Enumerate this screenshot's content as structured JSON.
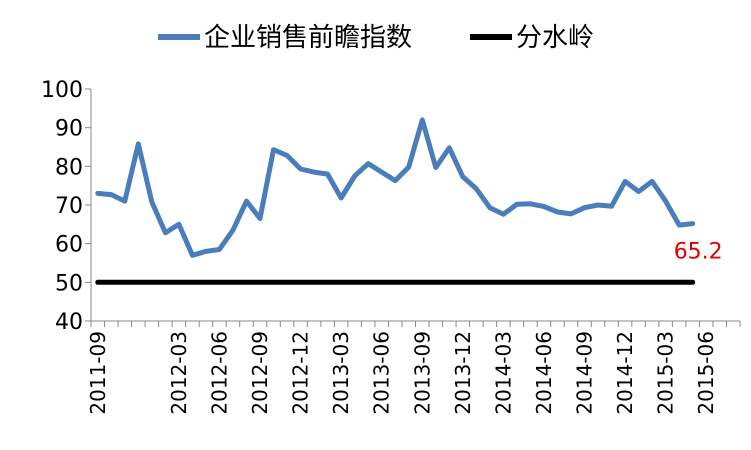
{
  "chart_data": {
    "type": "line",
    "title": "",
    "xlabel": "",
    "ylabel": "",
    "ylim": [
      40,
      100
    ],
    "yticks": [
      40,
      50,
      60,
      70,
      80,
      90,
      100
    ],
    "xtick_labels": [
      "2011-09",
      "2012-03",
      "2012-06",
      "2012-09",
      "2012-12",
      "2013-03",
      "2013-06",
      "2013-09",
      "2013-12",
      "2014-03",
      "2014-06",
      "2014-09",
      "2014-12",
      "2015-03",
      "2015-06"
    ],
    "x": [
      "2011-09",
      "2011-10",
      "2011-11",
      "2011-12",
      "2012-01",
      "2012-02",
      "2012-03",
      "2012-04",
      "2012-05",
      "2012-06",
      "2012-07",
      "2012-08",
      "2012-09",
      "2012-10",
      "2012-11",
      "2012-12",
      "2013-01",
      "2013-02",
      "2013-03",
      "2013-04",
      "2013-05",
      "2013-06",
      "2013-07",
      "2013-08",
      "2013-09",
      "2013-10",
      "2013-11",
      "2013-12",
      "2014-01",
      "2014-02",
      "2014-03",
      "2014-04",
      "2014-05",
      "2014-06",
      "2014-07",
      "2014-08",
      "2014-09",
      "2014-10",
      "2014-11",
      "2014-12",
      "2015-01",
      "2015-02",
      "2015-03",
      "2015-04",
      "2015-05",
      "2015-06",
      "2015-07",
      "2015-08"
    ],
    "series": [
      {
        "name": "企业销售前瞻指数",
        "color": "#4a7ebb",
        "values": [
          73.0,
          72.7,
          71.0,
          85.8,
          70.8,
          62.8,
          65.0,
          57.0,
          58.0,
          58.5,
          63.5,
          71.0,
          66.5,
          84.3,
          82.8,
          79.3,
          78.5,
          78.0,
          71.8,
          77.5,
          80.7,
          78.5,
          76.3,
          79.8,
          92.0,
          79.7,
          84.8,
          77.3,
          74.2,
          69.3,
          67.6,
          70.2,
          70.3,
          69.6,
          68.2,
          67.7,
          69.3,
          70.0,
          69.7,
          76.1,
          73.5,
          76.1,
          71.0,
          64.8,
          65.2,
          null,
          null,
          null
        ]
      },
      {
        "name": "分水岭",
        "color": "#000000",
        "values": [
          50,
          50,
          50,
          50,
          50,
          50,
          50,
          50,
          50,
          50,
          50,
          50,
          50,
          50,
          50,
          50,
          50,
          50,
          50,
          50,
          50,
          50,
          50,
          50,
          50,
          50,
          50,
          50,
          50,
          50,
          50,
          50,
          50,
          50,
          50,
          50,
          50,
          50,
          50,
          50,
          50,
          50,
          50,
          50,
          50,
          null,
          null,
          null
        ]
      }
    ],
    "annotations": [
      {
        "text": "65.2",
        "color": "#e00000"
      }
    ],
    "legend_position": "top",
    "grid": false
  }
}
